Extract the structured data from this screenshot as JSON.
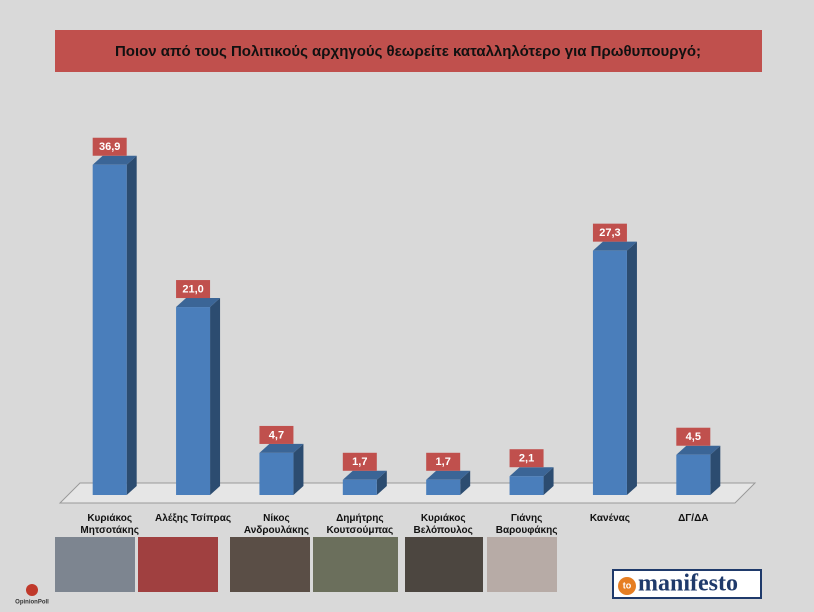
{
  "chart_data": {
    "type": "bar3d",
    "title": "Ποιον από τους Πολιτικούς αρχηγούς θεωρείτε καταλληλότερο για Πρωθυπουργό;",
    "categories": [
      "Κυριάκος Μητσοτάκης",
      "Αλέξης Τσίπρας",
      "Νίκος Ανδρουλάκης",
      "Δημήτρης Κουτσούμπας",
      "Κυριάκος Βελόπουλος",
      "Γιάνης Βαρουφάκης",
      "Κανένας",
      "ΔΓ/ΔΑ"
    ],
    "values": [
      36.9,
      21.0,
      4.7,
      1.7,
      1.7,
      2.1,
      27.3,
      4.5
    ],
    "value_labels": [
      "36,9",
      "21,0",
      "4,7",
      "1,7",
      "1,7",
      "2,1",
      "27,3",
      "4,5"
    ],
    "color": "#4a7ebb",
    "ylim": [
      0,
      40
    ]
  },
  "footer": {
    "left_logo": "OpinionPoll",
    "right_logo_prefix": "to",
    "right_logo": "manifesto"
  }
}
